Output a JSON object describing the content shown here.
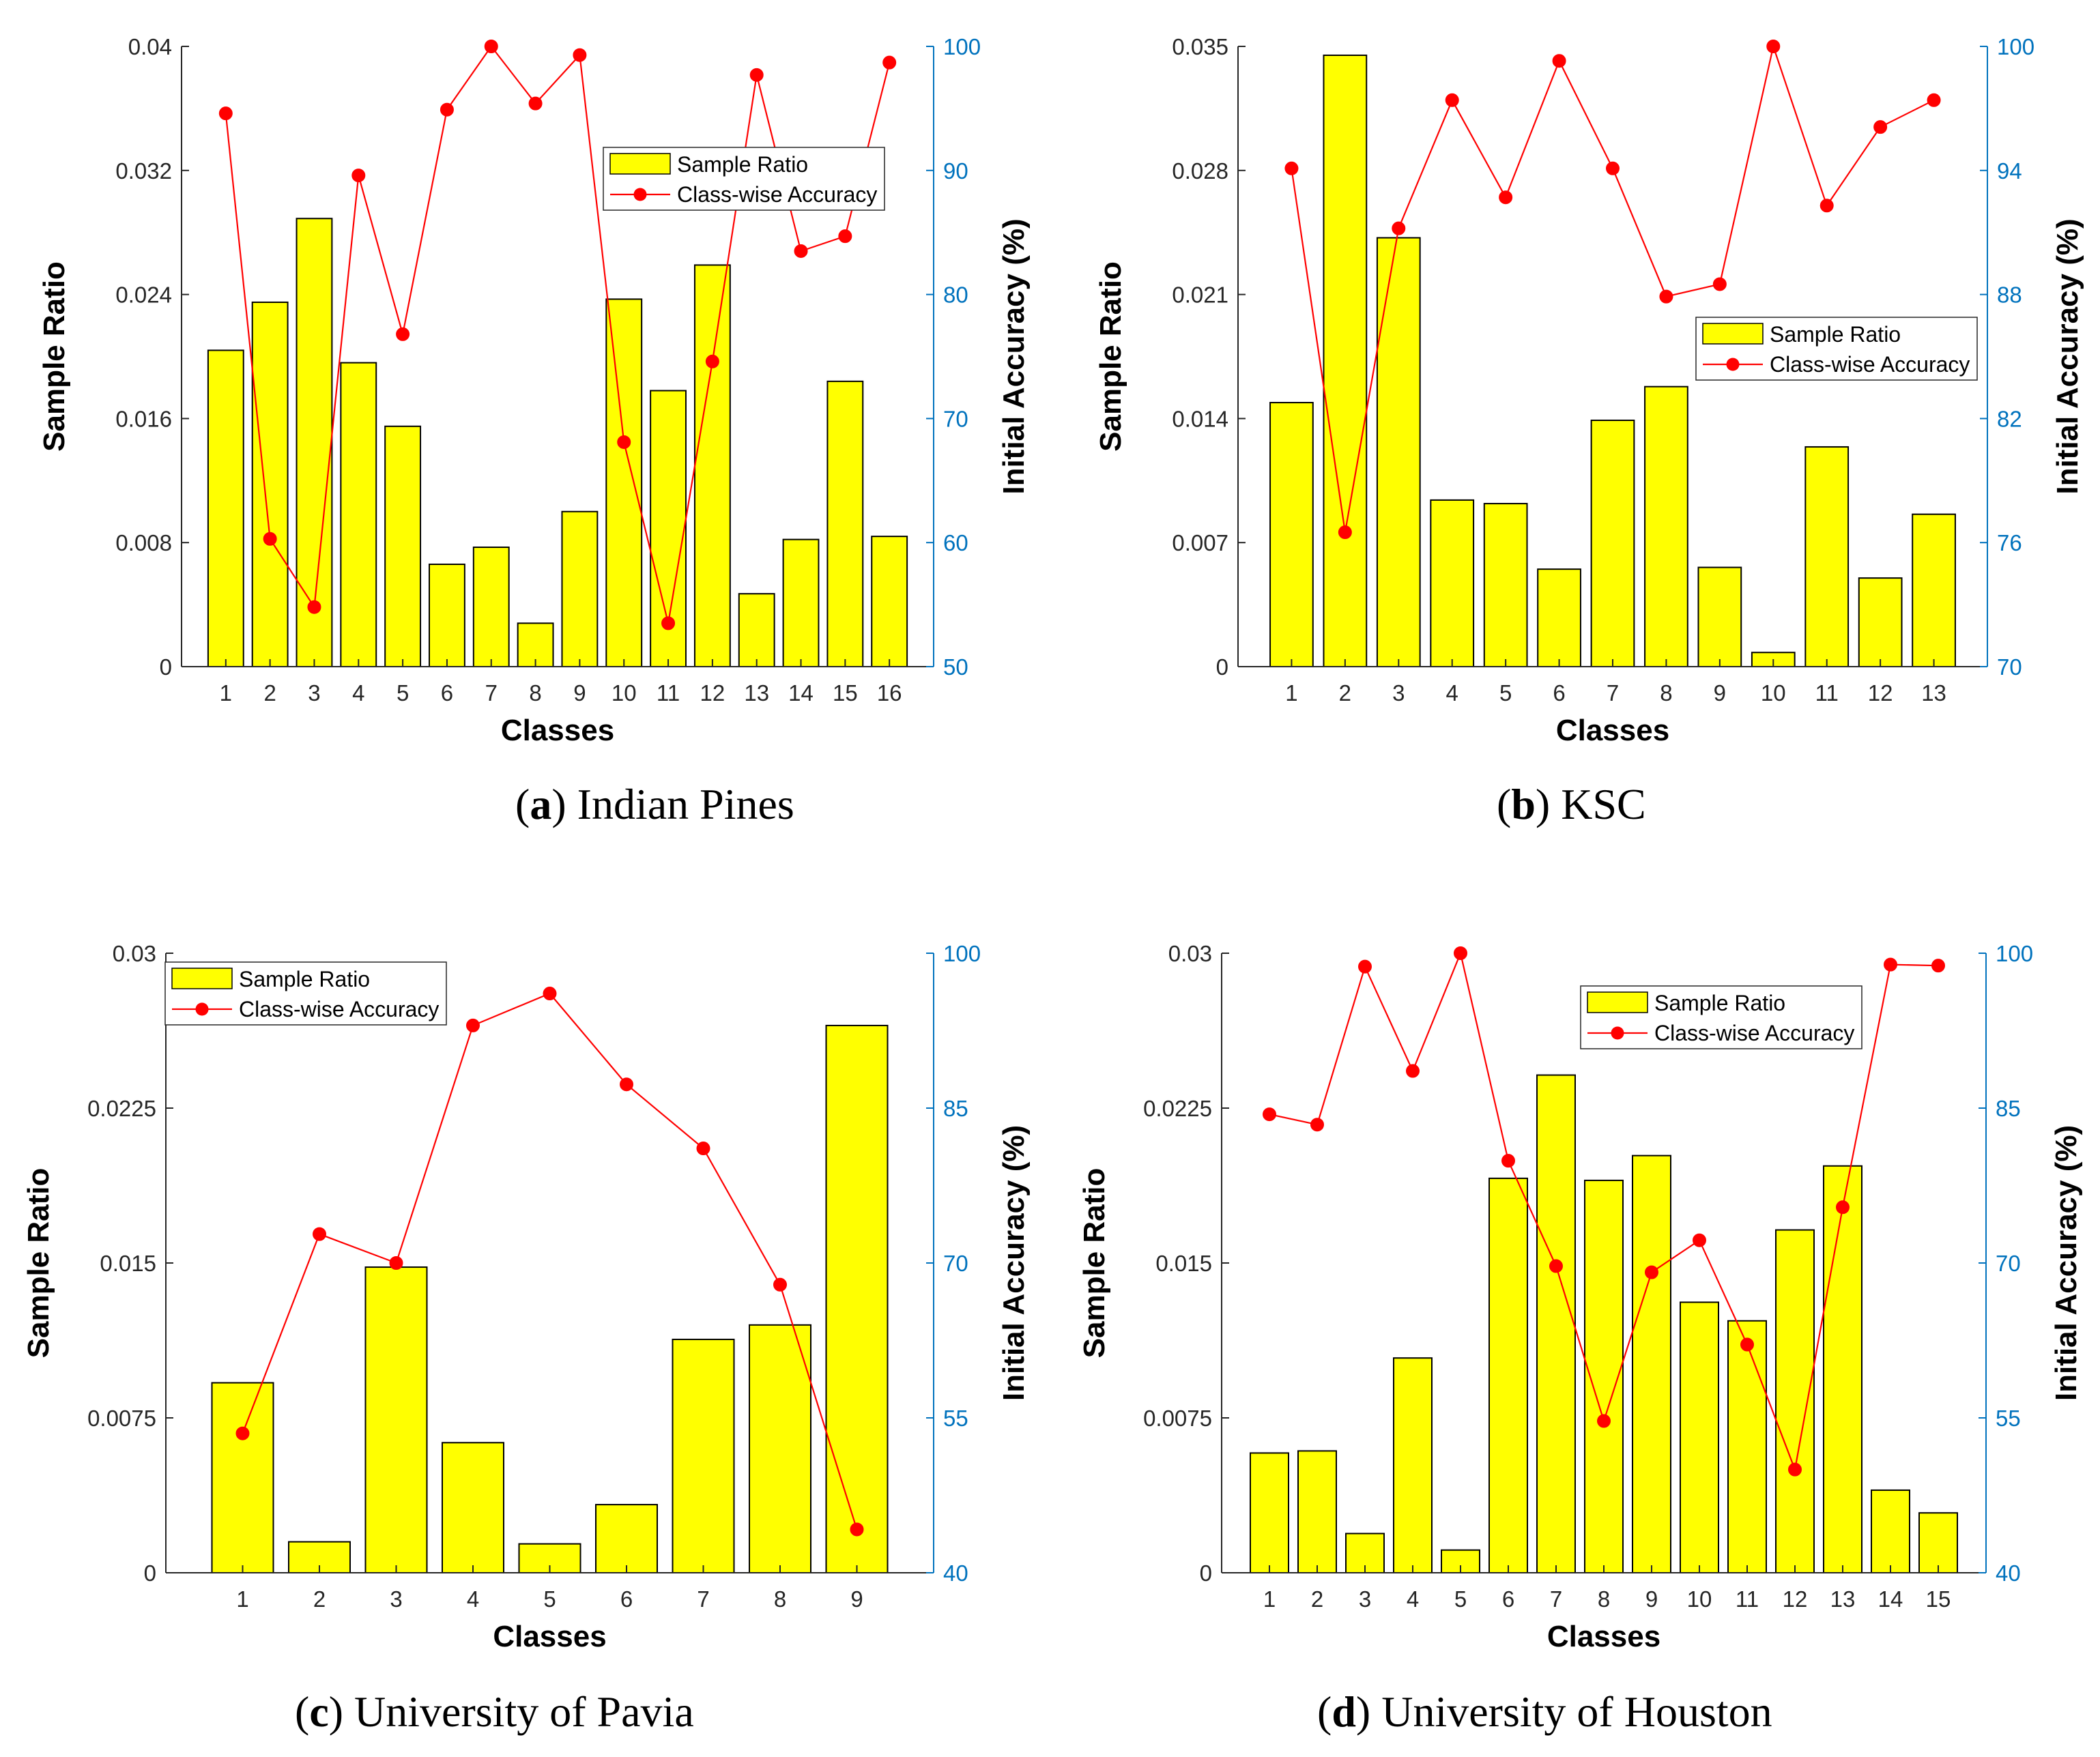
{
  "legend": {
    "bar_label": "Sample Ratio",
    "line_label": "Class-wise Accuracy"
  },
  "colors": {
    "bar_fill": "#FFFF00",
    "bar_edge": "#000000",
    "line": "#FF0000",
    "right_axis": "#0072BD"
  },
  "chart_data": [
    {
      "type": "bar",
      "caption_letter": "a",
      "caption": "Indian Pines",
      "xlabel": "Classes",
      "ylabel": "Sample Ratio",
      "ylabel_right": "Initial Accuracy (%)",
      "categories": [
        "1",
        "2",
        "3",
        "4",
        "5",
        "6",
        "7",
        "8",
        "9",
        "10",
        "11",
        "12",
        "13",
        "14",
        "15",
        "16"
      ],
      "ylim": [
        0,
        0.04
      ],
      "yticks": [
        "0",
        "0.008",
        "0.016",
        "0.024",
        "0.032",
        "0.04"
      ],
      "ylim_right": [
        50,
        100
      ],
      "yticks_right": [
        "50",
        "60",
        "70",
        "80",
        "90",
        "100"
      ],
      "legend_position": "top-right",
      "series": [
        {
          "name": "Sample Ratio",
          "type": "bar",
          "values": [
            0.0204,
            0.0235,
            0.0289,
            0.0196,
            0.0155,
            0.0066,
            0.0077,
            0.0028,
            0.01,
            0.0237,
            0.0178,
            0.0259,
            0.0047,
            0.0082,
            0.0184,
            0.0084
          ]
        },
        {
          "name": "Class-wise Accuracy",
          "type": "line",
          "axis": "right",
          "values": [
            94.6,
            60.3,
            54.8,
            89.6,
            76.8,
            94.9,
            100.0,
            95.4,
            99.3,
            68.1,
            53.5,
            74.6,
            97.7,
            83.5,
            84.7,
            98.7
          ]
        }
      ]
    },
    {
      "type": "bar",
      "caption_letter": "b",
      "caption": "KSC",
      "xlabel": "Classes",
      "ylabel": "Sample Ratio",
      "ylabel_right": "Initial Accuracy (%)",
      "categories": [
        "1",
        "2",
        "3",
        "4",
        "5",
        "6",
        "7",
        "8",
        "9",
        "10",
        "11",
        "12",
        "13"
      ],
      "ylim": [
        0,
        0.035
      ],
      "yticks": [
        "0",
        "0.007",
        "0.014",
        "0.021",
        "0.028",
        "0.035"
      ],
      "ylim_right": [
        70,
        100
      ],
      "yticks_right": [
        "70",
        "76",
        "82",
        "88",
        "94",
        "100"
      ],
      "legend_position": "right",
      "series": [
        {
          "name": "Sample Ratio",
          "type": "bar",
          "values": [
            0.0149,
            0.0345,
            0.0242,
            0.0094,
            0.0092,
            0.0055,
            0.0139,
            0.0158,
            0.0056,
            0.0008,
            0.0124,
            0.005,
            0.0086
          ]
        },
        {
          "name": "Class-wise Accuracy",
          "type": "line",
          "axis": "right",
          "values": [
            94.1,
            76.5,
            91.2,
            97.4,
            92.7,
            99.3,
            94.1,
            87.9,
            88.5,
            100.0,
            92.3,
            96.1,
            97.4
          ]
        }
      ]
    },
    {
      "type": "bar",
      "caption_letter": "c",
      "caption": "University of Pavia",
      "xlabel": "Classes",
      "ylabel": "Sample Ratio",
      "ylabel_right": "Initial Accuracy (%)",
      "categories": [
        "1",
        "2",
        "3",
        "4",
        "5",
        "6",
        "7",
        "8",
        "9"
      ],
      "ylim": [
        0,
        0.03
      ],
      "yticks": [
        "0",
        "0.0075",
        "0.015",
        "0.0225",
        "0.03"
      ],
      "ylim_right": [
        40,
        100
      ],
      "yticks_right": [
        "40",
        "55",
        "70",
        "85",
        "100"
      ],
      "legend_position": "top-left",
      "series": [
        {
          "name": "Sample Ratio",
          "type": "bar",
          "values": [
            0.0092,
            0.0015,
            0.0148,
            0.0063,
            0.0014,
            0.0033,
            0.0113,
            0.012,
            0.0265
          ]
        },
        {
          "name": "Class-wise Accuracy",
          "type": "line",
          "axis": "right",
          "values": [
            53.5,
            72.8,
            70.0,
            93.0,
            96.1,
            87.3,
            81.1,
            67.9,
            44.2
          ]
        }
      ]
    },
    {
      "type": "bar",
      "caption_letter": "d",
      "caption": "University of Houston",
      "xlabel": "Classes",
      "ylabel": "Sample Ratio",
      "ylabel_right": "Initial Accuracy (%)",
      "categories": [
        "1",
        "2",
        "3",
        "4",
        "5",
        "6",
        "7",
        "8",
        "9",
        "10",
        "11",
        "12",
        "13",
        "14",
        "15"
      ],
      "ylim": [
        0,
        0.03
      ],
      "yticks": [
        "0",
        "0.0075",
        "0.015",
        "0.0225",
        "0.03"
      ],
      "ylim_right": [
        40,
        100
      ],
      "yticks_right": [
        "40",
        "55",
        "70",
        "85",
        "100"
      ],
      "legend_position": "top-right",
      "series": [
        {
          "name": "Sample Ratio",
          "type": "bar",
          "values": [
            0.0058,
            0.0059,
            0.0019,
            0.0104,
            0.0011,
            0.0191,
            0.0241,
            0.019,
            0.0202,
            0.0131,
            0.0122,
            0.0166,
            0.0197,
            0.004,
            0.0029
          ]
        },
        {
          "name": "Class-wise Accuracy",
          "type": "line",
          "axis": "right",
          "values": [
            84.4,
            83.4,
            98.7,
            88.6,
            100.0,
            79.9,
            69.7,
            54.7,
            69.1,
            72.2,
            62.1,
            50.0,
            75.4,
            98.9,
            98.8
          ]
        }
      ]
    }
  ]
}
